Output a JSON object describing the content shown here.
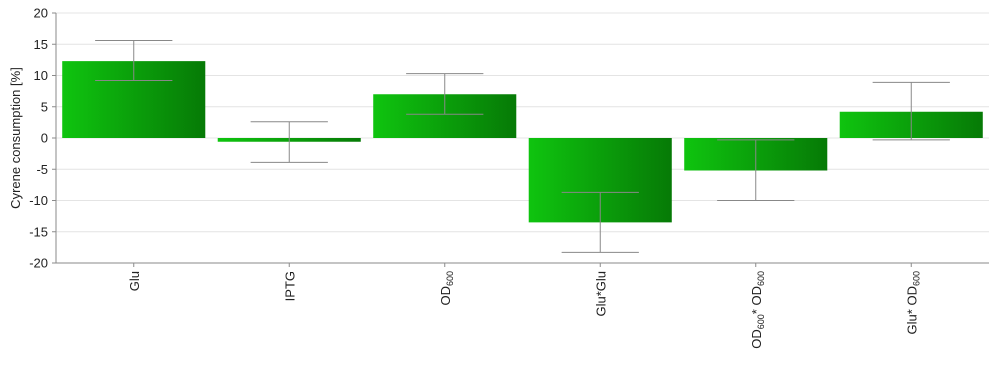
{
  "chart_data": {
    "type": "bar",
    "ylabel": "Cyrene consumption [%]",
    "xlabel": "",
    "ylim": [
      -20,
      20
    ],
    "yticks": [
      20,
      15,
      10,
      5,
      0,
      -5,
      -10,
      -15,
      -20
    ],
    "grid": true,
    "categories": [
      {
        "main": "Glu",
        "sub": "",
        "post": ""
      },
      {
        "main": "IPTG",
        "sub": "",
        "post": ""
      },
      {
        "main": "OD",
        "sub": "600",
        "post": ""
      },
      {
        "main": "Glu*Glu",
        "sub": "",
        "post": ""
      },
      {
        "main": "OD",
        "sub": "600",
        "post": "* OD600"
      },
      {
        "main": "Glu* OD",
        "sub": "600",
        "post": ""
      }
    ],
    "category_text": [
      "Glu",
      "IPTG",
      "OD600",
      "Glu*Glu",
      "OD600* OD600",
      "Glu* OD600"
    ],
    "values": [
      12.3,
      -0.6,
      7.0,
      -13.5,
      -5.2,
      4.2
    ],
    "error_low": [
      9.2,
      -3.9,
      3.8,
      -18.3,
      -10.0,
      -0.3
    ],
    "error_high": [
      15.6,
      2.6,
      10.3,
      -8.7,
      -0.3,
      8.9
    ],
    "colors": {
      "bar_light": "#0fc40f",
      "bar_dark": "#067a06",
      "error_bar": "#888888",
      "grid": "#e4e4e4",
      "axis": "#8a8a8a"
    }
  }
}
